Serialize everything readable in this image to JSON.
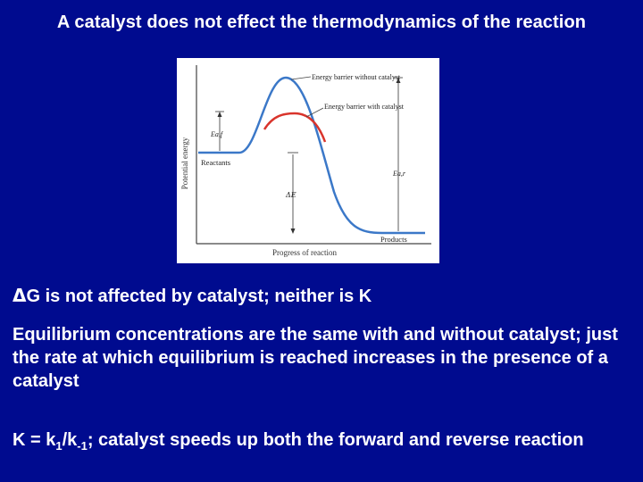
{
  "slide": {
    "title": "A catalyst does not effect the thermodynamics of the reaction",
    "bullet1": {
      "delta": "Δ",
      "text": "G is not affected by catalyst; neither is K"
    },
    "bullet2": "Equilibrium concentrations are the same with and without catalyst; just the rate at which equilibrium is reached increases in the presence of a catalyst",
    "bullet3": {
      "k_eq": "K = k",
      "sub1": "1",
      "slash": "/k",
      "sub2": "-1",
      "rest": "; catalyst speeds up both the forward and reverse reaction"
    }
  },
  "diagram": {
    "y_axis_label": "Potential energy",
    "x_axis_label": "Progress of reaction",
    "label_no_catalyst": "Energy barrier without catalyst",
    "label_with_catalyst": "Energy barrier with catalyst",
    "label_reactants": "Reactants",
    "label_products": "Products",
    "label_ea_forward": "Ea,f",
    "label_ea_reverse": "Ea,r",
    "label_delta_e": "ΔE",
    "colors": {
      "curve_without_catalyst": "#3b78c8",
      "curve_with_catalyst": "#d9342b",
      "axis": "#444444"
    }
  }
}
